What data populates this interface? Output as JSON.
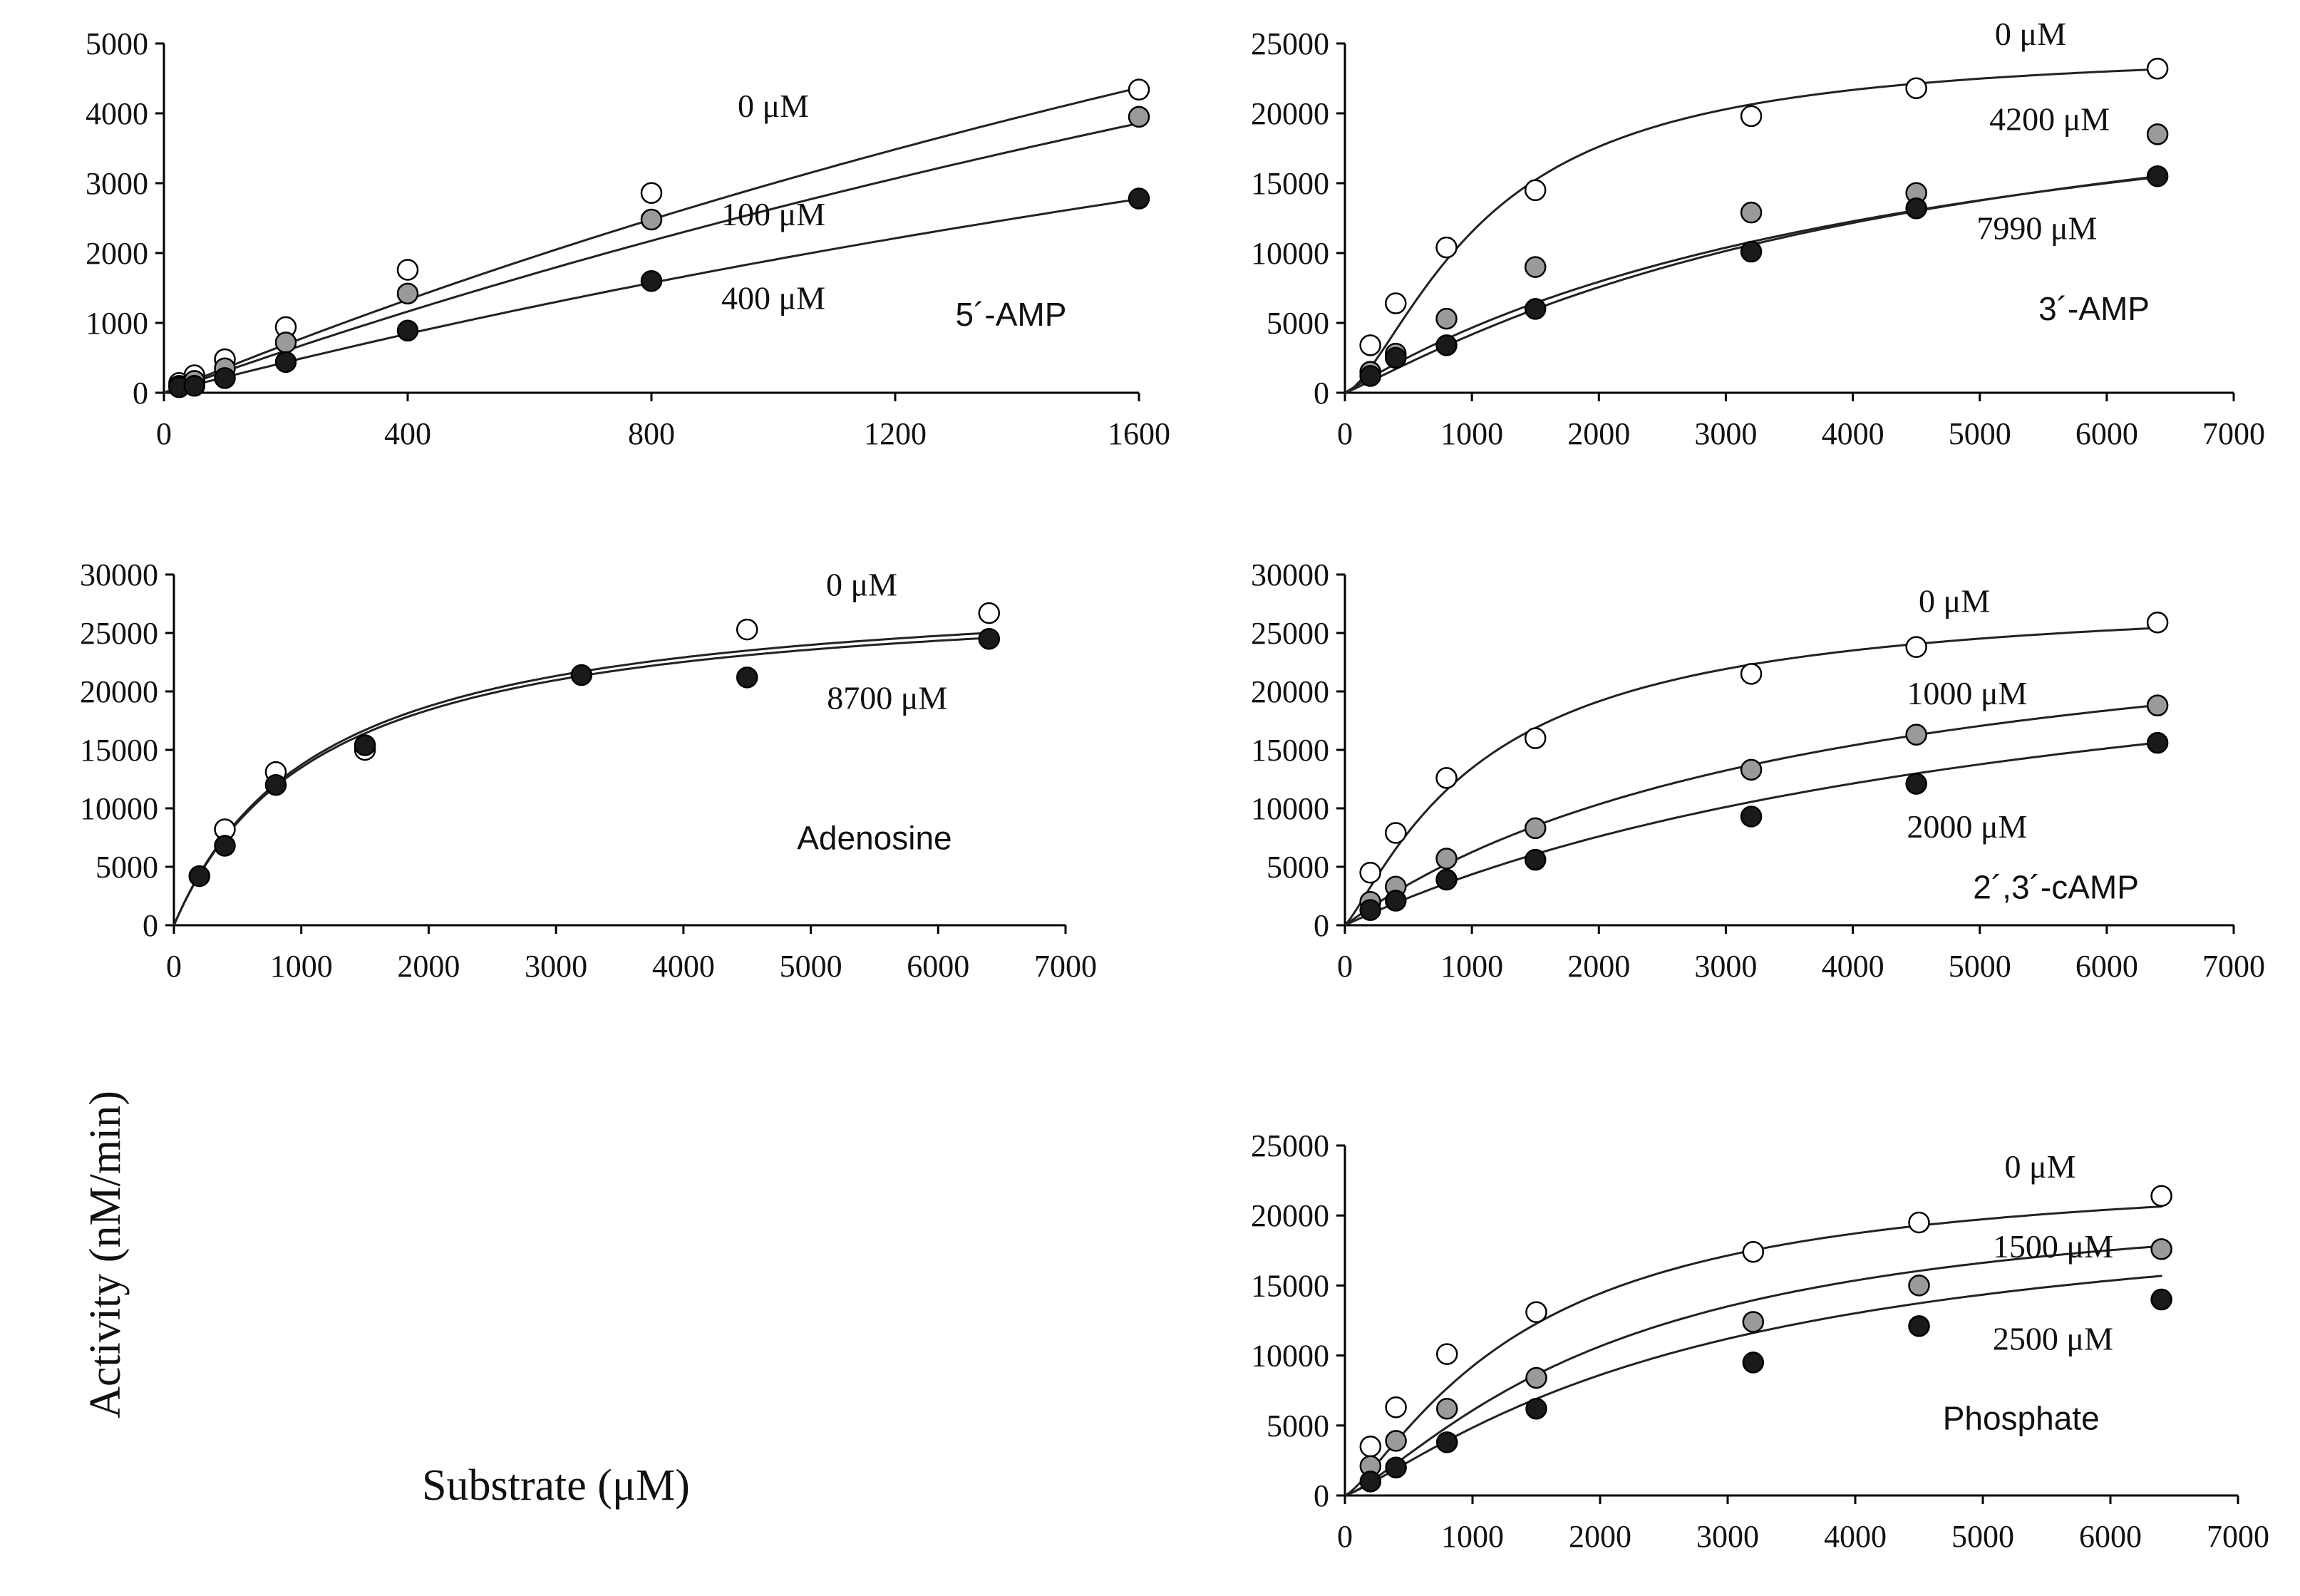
{
  "y_axis_title": "Activity (nM/min)",
  "x_axis_title": "Substrate (μM)",
  "colors": {
    "open": "#ffffff",
    "gray": "#9a9a9a",
    "filled": "#1a1a1a"
  },
  "chart_data": [
    {
      "type": "scatter",
      "id": "amp5",
      "title": "5´-AMP",
      "xlabel": "Substrate (μM)",
      "ylabel": "Activity (nM/min)",
      "xlim": [
        0,
        1600
      ],
      "ylim": [
        0,
        5000
      ],
      "xticks": [
        0,
        400,
        800,
        1200,
        1600
      ],
      "xtick_labels": [
        "0",
        "400",
        "800",
        "1200",
        "1600"
      ],
      "yticks": [
        0,
        1000,
        2000,
        3000,
        4000,
        5000
      ],
      "ytick_labels": [
        "0",
        "1000",
        "2000",
        "3000",
        "4000",
        "5000"
      ],
      "series": [
        {
          "name": "0 μM",
          "style": "open",
          "label_anchor": [
            1000,
            3950
          ],
          "x": [
            25,
            50,
            100,
            200,
            400,
            800,
            1600
          ],
          "y": [
            140,
            250,
            480,
            940,
            1760,
            2860,
            4340
          ],
          "fit": {
            "vmax": 18200,
            "km": 5070,
            "n": 1
          }
        },
        {
          "name": "100 μM",
          "style": "gray",
          "label_anchor": [
            1000,
            2400
          ],
          "x": [
            25,
            50,
            100,
            200,
            400,
            800,
            1600
          ],
          "y": [
            100,
            170,
            350,
            720,
            1420,
            2480,
            3950
          ],
          "fit": {
            "vmax": 17000,
            "km": 5450,
            "n": 1
          }
        },
        {
          "name": "400 μM",
          "style": "filled",
          "label_anchor": [
            1000,
            1200
          ],
          "x": [
            25,
            50,
            100,
            200,
            400,
            800,
            1600
          ],
          "y": [
            80,
            100,
            210,
            440,
            890,
            1600,
            2780
          ],
          "fit": {
            "vmax": 11700,
            "km": 5150,
            "n": 1
          }
        }
      ],
      "annotation_anchor": [
        1390,
        960
      ]
    },
    {
      "type": "scatter",
      "id": "amp3",
      "title": "3´-AMP",
      "xlabel": "Substrate (μM)",
      "ylabel": "Activity (nM/min)",
      "xlim": [
        0,
        7000
      ],
      "ylim": [
        0,
        25000
      ],
      "xticks": [
        0,
        1000,
        2000,
        3000,
        4000,
        5000,
        6000,
        7000
      ],
      "xtick_labels": [
        "0",
        "1000",
        "2000",
        "3000",
        "4000",
        "5000",
        "6000",
        "7000"
      ],
      "yticks": [
        0,
        5000,
        10000,
        15000,
        20000,
        25000
      ],
      "ytick_labels": [
        "0",
        "5000",
        "10000",
        "15000",
        "20000",
        "25000"
      ],
      "series": [
        {
          "name": "0 μM",
          "style": "open",
          "label_anchor": [
            5400,
            24900
          ],
          "x": [
            200,
            400,
            800,
            1500,
            3200,
            4500,
            6400
          ],
          "y": [
            3400,
            6400,
            10400,
            14500,
            19800,
            21800,
            23200
          ],
          "fit": {
            "vmax": 24800,
            "km": 1100,
            "n": 1.5
          }
        },
        {
          "name": "4200 μM",
          "style": "gray",
          "label_anchor": [
            5550,
            18800
          ],
          "x": [
            200,
            400,
            800,
            1500,
            3200,
            4500,
            6400
          ],
          "y": [
            1500,
            2800,
            5300,
            9000,
            12900,
            14300,
            18500
          ],
          "fit": {
            "vmax": 27000,
            "km": 4800,
            "n": 1
          }
        },
        {
          "name": "7990 μM",
          "style": "filled",
          "label_anchor": [
            5450,
            11000
          ],
          "x": [
            200,
            400,
            800,
            1500,
            3200,
            4500,
            6400
          ],
          "y": [
            1200,
            2500,
            3400,
            6000,
            10100,
            13200,
            15500
          ],
          "fit": {
            "vmax": 26000,
            "km": 4500,
            "n": 1.1
          }
        }
      ],
      "annotation_anchor": [
        5900,
        5200
      ]
    },
    {
      "type": "scatter",
      "id": "adenosine",
      "title": "Adenosine",
      "xlabel": "Substrate (μM)",
      "ylabel": "Activity (nM/min)",
      "xlim": [
        0,
        7000
      ],
      "ylim": [
        0,
        30000
      ],
      "xticks": [
        0,
        1000,
        2000,
        3000,
        4000,
        5000,
        6000,
        7000
      ],
      "xtick_labels": [
        "0",
        "1000",
        "2000",
        "3000",
        "4000",
        "5000",
        "6000",
        "7000"
      ],
      "yticks": [
        0,
        5000,
        10000,
        15000,
        20000,
        25000,
        30000
      ],
      "ytick_labels": [
        "0",
        "5000",
        "10000",
        "15000",
        "20000",
        "25000",
        "30000"
      ],
      "series": [
        {
          "name": "0 μM",
          "style": "open",
          "label_anchor": [
            5400,
            28200
          ],
          "x": [
            400,
            800,
            1500,
            4500,
            6400
          ],
          "y": [
            8200,
            13100,
            15000,
            25300,
            26700
          ],
          "fit": {
            "vmax": 29500,
            "km": 1150,
            "n": 1
          }
        },
        {
          "name": "8700 μM",
          "style": "filled",
          "label_anchor": [
            5600,
            18500
          ],
          "x": [
            200,
            400,
            800,
            1500,
            3200,
            4500,
            6400
          ],
          "y": [
            4200,
            6800,
            12000,
            15400,
            21400,
            21200,
            24500
          ],
          "fit": {
            "vmax": 29000,
            "km": 1150,
            "n": 1
          }
        }
      ],
      "annotation_anchor": [
        5500,
        6500
      ]
    },
    {
      "type": "scatter",
      "id": "camp",
      "title": "2´,3´-cAMP",
      "xlabel": "Substrate (μM)",
      "ylabel": "Activity (nM/min)",
      "xlim": [
        0,
        7000
      ],
      "ylim": [
        0,
        30000
      ],
      "xticks": [
        0,
        1000,
        2000,
        3000,
        4000,
        5000,
        6000,
        7000
      ],
      "xtick_labels": [
        "0",
        "1000",
        "2000",
        "3000",
        "4000",
        "5000",
        "6000",
        "7000"
      ],
      "yticks": [
        0,
        5000,
        10000,
        15000,
        20000,
        25000,
        30000
      ],
      "ytick_labels": [
        "0",
        "5000",
        "10000",
        "15000",
        "20000",
        "25000",
        "30000"
      ],
      "series": [
        {
          "name": "0 μM",
          "style": "open",
          "label_anchor": [
            4800,
            26800
          ],
          "x": [
            200,
            400,
            800,
            1500,
            3200,
            4500,
            6400
          ],
          "y": [
            4500,
            7900,
            12600,
            16000,
            21500,
            23800,
            25900
          ],
          "fit": {
            "vmax": 28500,
            "km": 1100,
            "n": 1.2
          }
        },
        {
          "name": "1000 μM",
          "style": "gray",
          "label_anchor": [
            4900,
            18900
          ],
          "x": [
            200,
            400,
            800,
            1500,
            3200,
            4500,
            6400
          ],
          "y": [
            2000,
            3300,
            5700,
            8300,
            13300,
            16300,
            18800
          ],
          "fit": {
            "vmax": 30000,
            "km": 3800,
            "n": 1
          }
        },
        {
          "name": "2000 μM",
          "style": "filled",
          "label_anchor": [
            4900,
            7500
          ],
          "x": [
            200,
            400,
            800,
            1500,
            3200,
            4500,
            6400
          ],
          "y": [
            1300,
            2100,
            3900,
            5600,
            9300,
            12100,
            15600
          ],
          "fit": {
            "vmax": 30000,
            "km": 5900,
            "n": 1
          }
        }
      ],
      "annotation_anchor": [
        5600,
        2300
      ]
    },
    {
      "type": "scatter",
      "id": "phosphate",
      "title": "Phosphate",
      "xlabel": "Substrate (μM)",
      "ylabel": "Activity (nM/min)",
      "xlim": [
        0,
        7000
      ],
      "ylim": [
        0,
        25000
      ],
      "xticks": [
        0,
        1000,
        2000,
        3000,
        4000,
        5000,
        6000,
        7000
      ],
      "xtick_labels": [
        "0",
        "1000",
        "2000",
        "3000",
        "4000",
        "5000",
        "6000",
        "7000"
      ],
      "yticks": [
        0,
        5000,
        10000,
        15000,
        20000,
        25000
      ],
      "ytick_labels": [
        "0",
        "5000",
        "10000",
        "15000",
        "20000",
        "25000"
      ],
      "series": [
        {
          "name": "0 μM",
          "style": "open",
          "label_anchor": [
            5450,
            22700
          ],
          "x": [
            200,
            400,
            800,
            1500,
            3200,
            4500,
            6400
          ],
          "y": [
            3500,
            6300,
            10100,
            13100,
            17400,
            19500,
            21400
          ],
          "fit": {
            "vmax": 23500,
            "km": 1400,
            "n": 1.3
          }
        },
        {
          "name": "1500 μM",
          "style": "gray",
          "label_anchor": [
            5550,
            17000
          ],
          "x": [
            200,
            400,
            800,
            1500,
            3200,
            4500,
            6400
          ],
          "y": [
            2100,
            3900,
            6200,
            8400,
            12400,
            15000,
            17600
          ],
          "fit": {
            "vmax": 22000,
            "km": 2100,
            "n": 1.3
          }
        },
        {
          "name": "2500 μM",
          "style": "filled",
          "label_anchor": [
            5550,
            10400
          ],
          "x": [
            200,
            400,
            800,
            1500,
            3200,
            4500,
            6400
          ],
          "y": [
            1000,
            2000,
            3800,
            6200,
            9500,
            12100,
            14000
          ],
          "fit": {
            "vmax": 21500,
            "km": 2800,
            "n": 1.2
          }
        }
      ],
      "annotation_anchor": [
        5300,
        4700
      ]
    }
  ]
}
